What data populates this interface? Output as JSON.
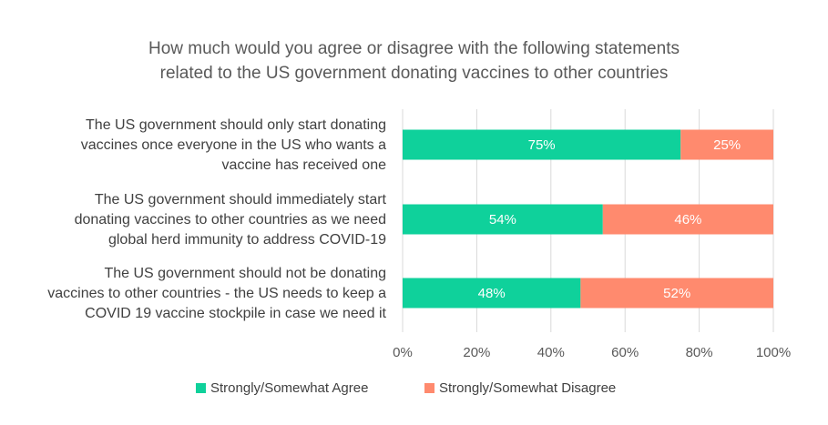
{
  "chart_data": {
    "type": "bar",
    "orientation": "horizontal",
    "stacked": true,
    "title_lines": [
      "How much would you agree or disagree with the following statements",
      "related to the US government donating vaccines to other countries"
    ],
    "categories": [
      [
        "The US government should only start donating",
        "vaccines once everyone in the US who wants a",
        "vaccine has received one"
      ],
      [
        "The US government should immediately start",
        "donating vaccines to other countries as we need",
        "global herd immunity to address COVID-19"
      ],
      [
        "The US government should not be donating",
        "vaccines to other countries - the US needs to keep a",
        "COVID 19 vaccine stockpile in case we need it"
      ]
    ],
    "series": [
      {
        "name": "Strongly/Somewhat Agree",
        "values": [
          75,
          54,
          48
        ],
        "labels": [
          "75%",
          "54%",
          "48%"
        ],
        "color": "#0FD19B"
      },
      {
        "name": "Strongly/Somewhat Disagree",
        "values": [
          25,
          46,
          52
        ],
        "labels": [
          "25%",
          "46%",
          "52%"
        ],
        "color": "#FF8A6E"
      }
    ],
    "xlim": [
      0,
      100
    ],
    "xticks": [
      0,
      20,
      40,
      60,
      80,
      100
    ],
    "xtick_labels": [
      "0%",
      "20%",
      "40%",
      "60%",
      "80%",
      "100%"
    ],
    "grid": "vertical",
    "legend_position": "bottom",
    "gridline_color": "#D9D9D9"
  }
}
